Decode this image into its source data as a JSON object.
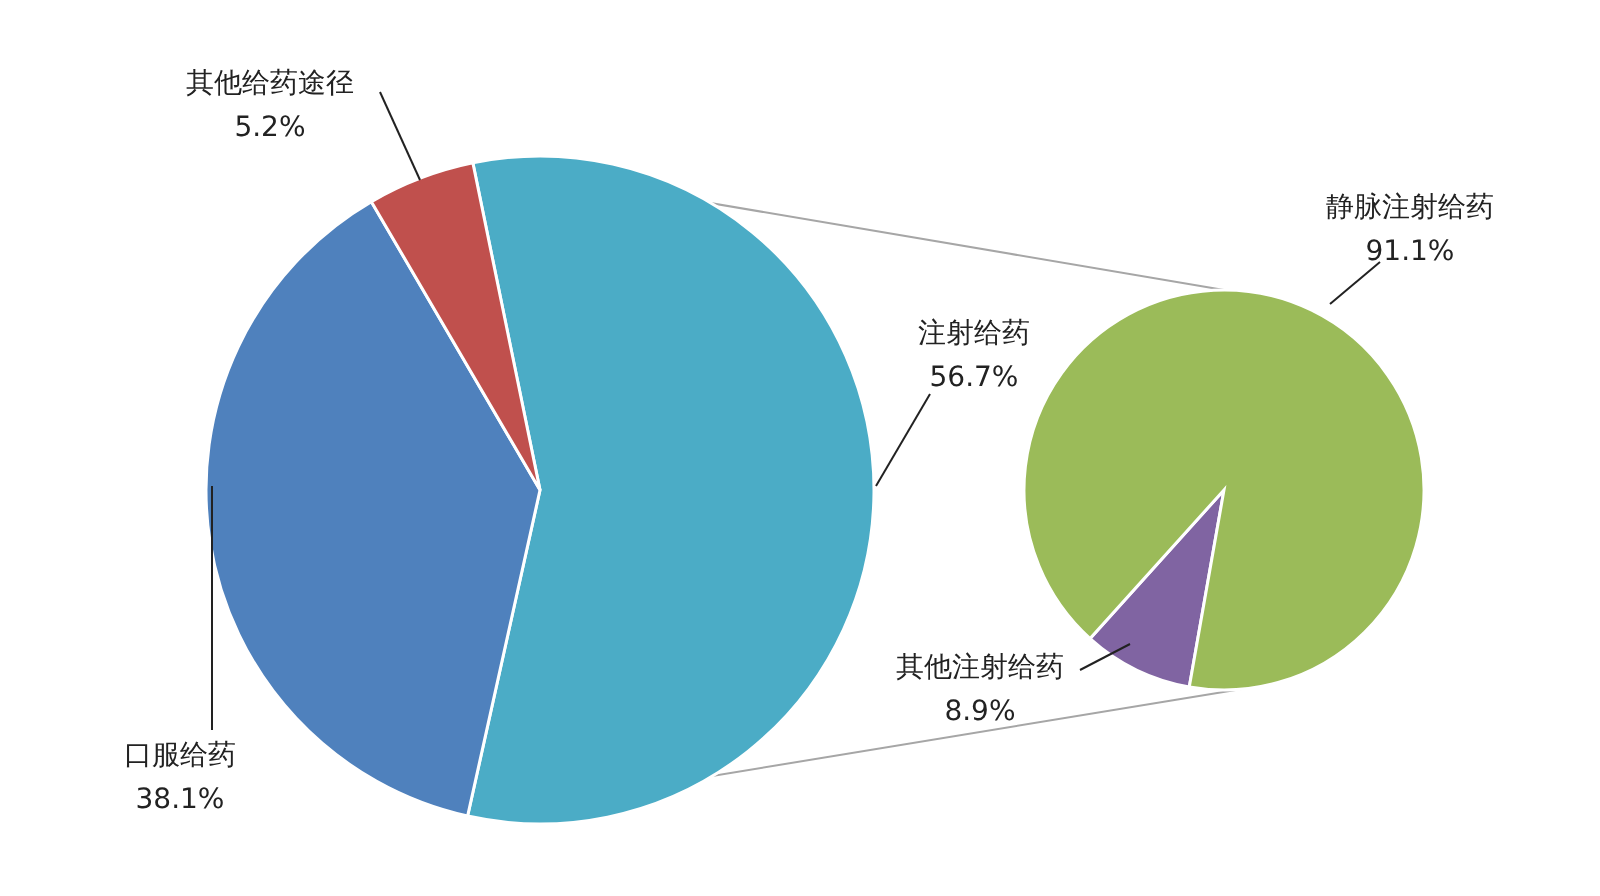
{
  "chart_data": [
    {
      "type": "pie",
      "categories": [
        "注射给药",
        "口服给药",
        "其他给药途径"
      ],
      "values": [
        56.7,
        38.1,
        5.2
      ],
      "colors": [
        "#4bacc6",
        "#4f81bd",
        "#c0504d"
      ],
      "value_labels": [
        "56.7%",
        "38.1%",
        "5.2%"
      ]
    },
    {
      "type": "pie",
      "categories": [
        "其他注射给药",
        "静脉注射给药"
      ],
      "values": [
        8.9,
        91.1
      ],
      "colors": [
        "#8064a2",
        "#9bbb59"
      ],
      "value_labels": [
        "8.9%",
        "91.1%"
      ]
    }
  ]
}
